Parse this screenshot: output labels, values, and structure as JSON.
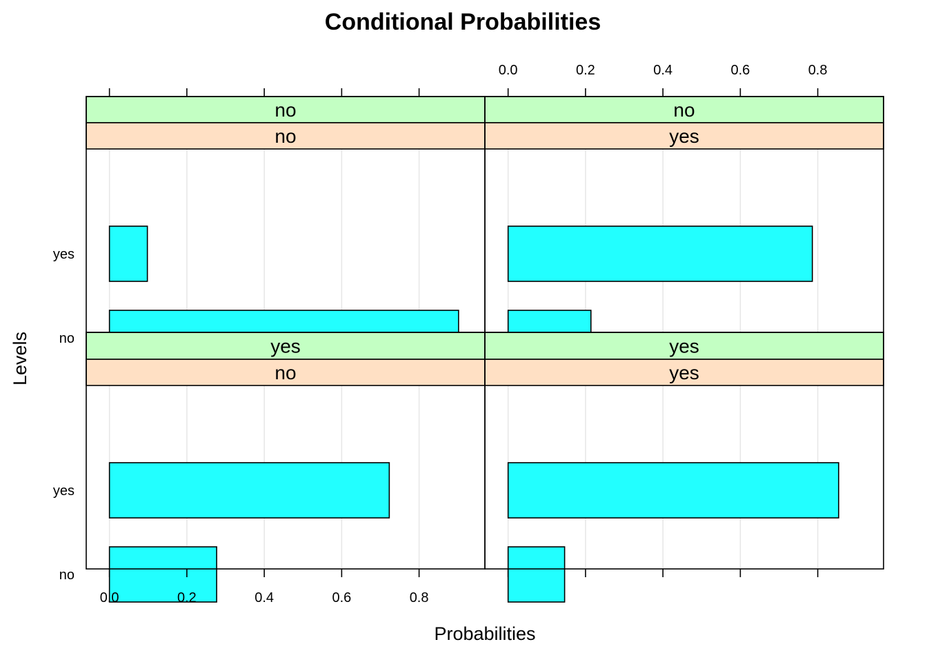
{
  "chart_data": {
    "type": "bar",
    "orientation": "horizontal",
    "title": "Conditional Probabilities",
    "xlabel": "Probabilities",
    "ylabel": "Levels",
    "xlim": [
      -0.06,
      0.97
    ],
    "x_ticks": [
      "0.0",
      "0.2",
      "0.4",
      "0.6",
      "0.8"
    ],
    "x_tick_values": [
      0.0,
      0.2,
      0.4,
      0.6,
      0.8
    ],
    "levels": [
      "no",
      "yes"
    ],
    "grid": true,
    "colors": {
      "bar_fill": "#22ffff",
      "bar_stroke": "#000000",
      "strip_top": "#c3ffc3",
      "strip_bottom": "#ffe0c4",
      "grid": "#e6e6e6"
    },
    "panels": [
      {
        "strip_top": "no",
        "strip_bottom": "no",
        "values": [
          0.902,
          0.098
        ]
      },
      {
        "strip_top": "no",
        "strip_bottom": "yes",
        "values": [
          0.214,
          0.786
        ]
      },
      {
        "strip_top": "yes",
        "strip_bottom": "no",
        "values": [
          0.277,
          0.723
        ]
      },
      {
        "strip_top": "yes",
        "strip_bottom": "yes",
        "values": [
          0.146,
          0.854
        ]
      }
    ]
  }
}
